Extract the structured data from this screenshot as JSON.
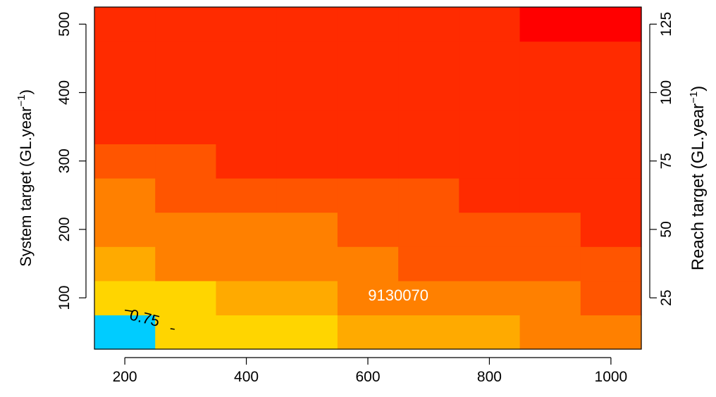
{
  "chart_data": {
    "type": "heatmap",
    "x_ticks": [
      200,
      400,
      600,
      800,
      1000
    ],
    "y_left_ticks": [
      100,
      200,
      300,
      400,
      500
    ],
    "y_right_ticks": [
      25,
      50,
      75,
      100,
      125
    ],
    "xlim": [
      150,
      1050
    ],
    "ylim_left": [
      25,
      525
    ],
    "ylim_right": [
      6.25,
      131.25
    ],
    "ylabel_left": "System target (GL.year",
    "ylabel_left_sup": "−1",
    "ylabel_left_close": ")",
    "ylabel_right": "Reach target (GL.year",
    "ylabel_right_sup": "−1",
    "ylabel_right_close": ")",
    "x_centers": [
      200,
      300,
      400,
      500,
      600,
      700,
      800,
      900,
      1000
    ],
    "y_centers": [
      50,
      100,
      150,
      200,
      250,
      300,
      350,
      400,
      450,
      500
    ],
    "palette": [
      "#00CCFF",
      "#FFD500",
      "#FFAA00",
      "#FF8000",
      "#FF5500",
      "#FF2B00",
      "#FF0000"
    ],
    "levels": [
      [
        0,
        1,
        1,
        1,
        2,
        2,
        2,
        3,
        3
      ],
      [
        1,
        1,
        2,
        2,
        3,
        3,
        3,
        3,
        4
      ],
      [
        2,
        3,
        3,
        3,
        3,
        4,
        4,
        4,
        4
      ],
      [
        3,
        3,
        3,
        3,
        4,
        4,
        4,
        4,
        5
      ],
      [
        3,
        4,
        4,
        4,
        4,
        4,
        5,
        5,
        5
      ],
      [
        4,
        4,
        5,
        5,
        5,
        5,
        5,
        5,
        5
      ],
      [
        5,
        5,
        5,
        5,
        5,
        5,
        5,
        5,
        5
      ],
      [
        5,
        5,
        5,
        5,
        5,
        5,
        5,
        5,
        5
      ],
      [
        5,
        5,
        5,
        5,
        5,
        5,
        5,
        5,
        5
      ],
      [
        5,
        5,
        5,
        5,
        5,
        5,
        5,
        6,
        6
      ]
    ],
    "contour": {
      "label": "0.75",
      "label_at": [
        250,
        64
      ]
    },
    "annotation": {
      "text": "9130070",
      "at": [
        650,
        100
      ]
    }
  }
}
